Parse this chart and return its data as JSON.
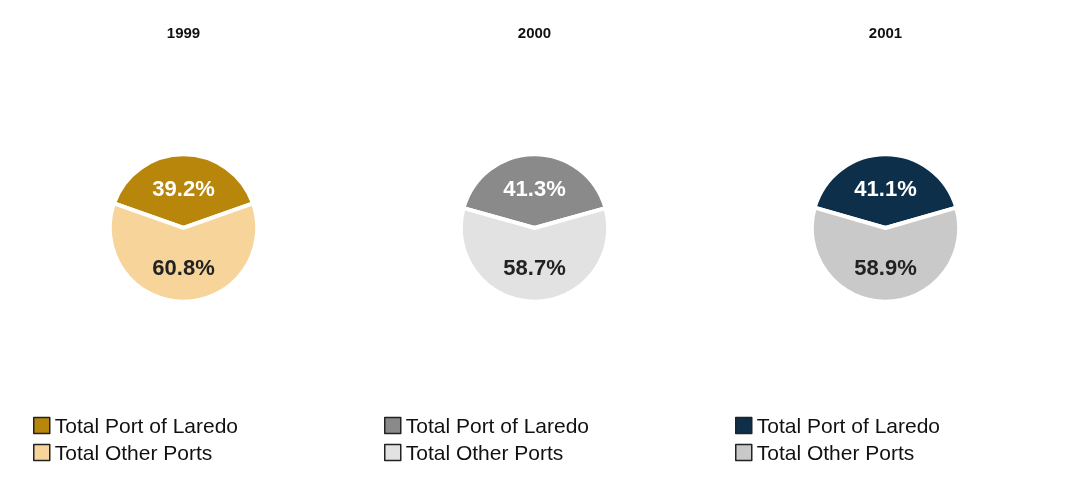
{
  "chart_data": [
    {
      "type": "pie",
      "title": "1999",
      "categories": [
        "Total Port of Laredo",
        "Total Other Ports"
      ],
      "values": [
        39.2,
        60.8
      ],
      "colors": [
        "#b8860b",
        "#f7d49a"
      ],
      "value_labels": [
        "39.2%",
        "60.8%"
      ],
      "legend": "bottom"
    },
    {
      "type": "pie",
      "title": "2000",
      "categories": [
        "Total Port of Laredo",
        "Total Other Ports"
      ],
      "values": [
        41.3,
        58.7
      ],
      "colors": [
        "#8a8a8a",
        "#e2e2e2"
      ],
      "value_labels": [
        "41.3%",
        "58.7%"
      ],
      "legend": "bottom"
    },
    {
      "type": "pie",
      "title": "2001",
      "categories": [
        "Total Port of Laredo",
        "Total Other Ports"
      ],
      "values": [
        41.1,
        58.9
      ],
      "colors": [
        "#0e2f4a",
        "#c9c9c9"
      ],
      "value_labels": [
        "41.1%",
        "58.9%"
      ],
      "legend": "bottom"
    }
  ]
}
